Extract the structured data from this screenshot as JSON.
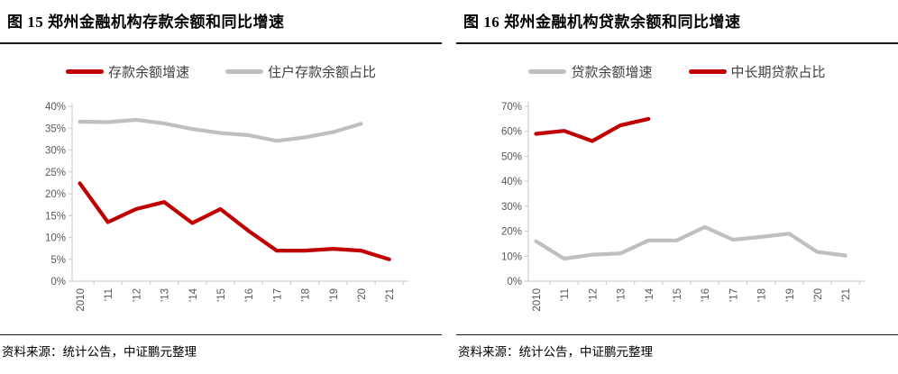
{
  "colors": {
    "accent_red": "#C00000",
    "series_gray": "#BFBFBF",
    "axis_line": "#D0D0D0",
    "axis_label": "#595959"
  },
  "charts": [
    {
      "title": "图 15 郑州金融机构存款余额和同比增速",
      "source_note": "资料来源：统计公告，中证鹏元整理",
      "chart_data": {
        "type": "line",
        "categories": [
          "2010",
          "'11",
          "'12",
          "'13",
          "'14",
          "'15",
          "'16",
          "'17",
          "'18",
          "'19",
          "'20",
          "'21"
        ],
        "series": [
          {
            "name": "存款余额增速",
            "color": "#C00000",
            "values": [
              22.4,
              13.5,
              16.5,
              18.1,
              13.3,
              16.5,
              11.5,
              7.0,
              7.0,
              7.4,
              7.0,
              5.0
            ]
          },
          {
            "name": "住户存款余额占比",
            "color": "#BFBFBF",
            "values": [
              36.5,
              36.4,
              36.9,
              36.1,
              34.8,
              33.9,
              33.4,
              32.1,
              32.9,
              34.1,
              36.0,
              null
            ]
          }
        ],
        "ylim": [
          0,
          40
        ],
        "ytick_step": 5,
        "ytick_suffix": "%",
        "grid": false,
        "legend_position": "top"
      }
    },
    {
      "title": "图 16 郑州金融机构贷款余额和同比增速",
      "source_note": "资料来源：统计公告，中证鹏元整理",
      "chart_data": {
        "type": "line",
        "categories": [
          "2010",
          "'11",
          "'12",
          "'13",
          "'14",
          "'15",
          "'16",
          "'17",
          "'18",
          "'19",
          "'20",
          "'21"
        ],
        "series": [
          {
            "name": "贷款余额增速",
            "color": "#BFBFBF",
            "values": [
              16.0,
              9.0,
              10.6,
              11.1,
              16.3,
              16.3,
              21.7,
              16.6,
              17.7,
              19.0,
              11.7,
              10.3
            ]
          },
          {
            "name": "中长期贷款占比",
            "color": "#C00000",
            "values": [
              59.0,
              60.2,
              56.1,
              62.4,
              65.0,
              null,
              null,
              null,
              null,
              null,
              null,
              null
            ]
          }
        ],
        "ylim": [
          0,
          70
        ],
        "ytick_step": 10,
        "ytick_suffix": "%",
        "grid": false,
        "legend_position": "top"
      }
    }
  ]
}
